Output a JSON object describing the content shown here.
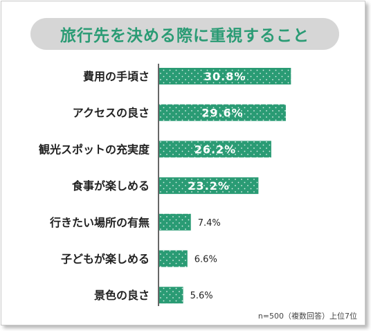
{
  "chart_data": {
    "type": "bar",
    "orientation": "horizontal",
    "title": "旅行先を決める際に重視すること",
    "categories": [
      "費用の手頃さ",
      "アクセスの良さ",
      "観光スポットの充実度",
      "食事が楽しめる",
      "行きたい場所の有無",
      "子どもが楽しめる",
      "景色の良さ"
    ],
    "values": [
      30.8,
      29.6,
      26.2,
      23.2,
      7.4,
      6.6,
      5.6
    ],
    "value_labels": [
      "30.8%",
      "29.6%",
      "26.2%",
      "23.2%",
      "7.4%",
      "6.6%",
      "5.6%"
    ],
    "xlim": [
      0,
      36
    ],
    "grid": false,
    "bar_color": "#2a9b74",
    "note": "n=500（複数回答）上位7位"
  },
  "colors": {
    "accent": "#2a9b74",
    "title_background": "#d6d6d6"
  }
}
